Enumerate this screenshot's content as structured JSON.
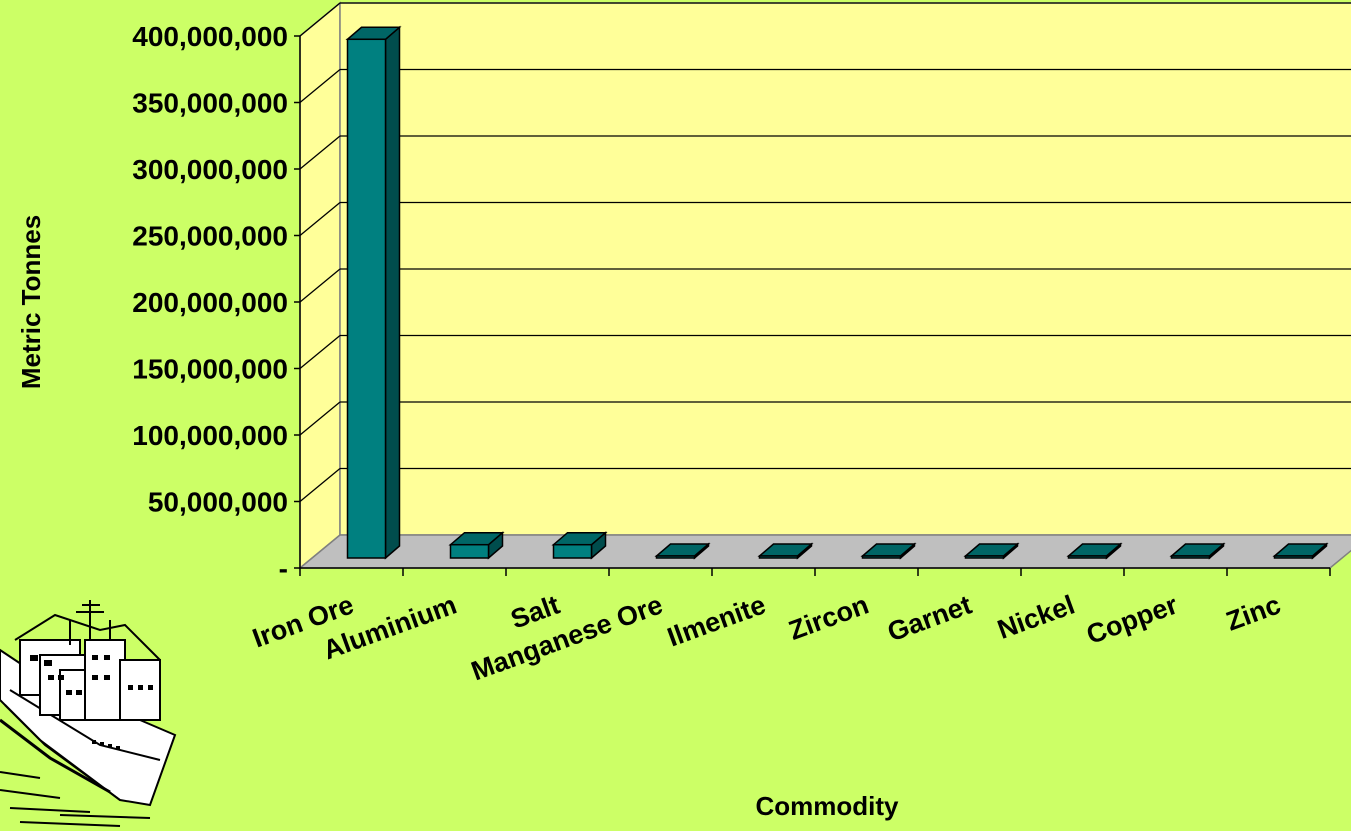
{
  "chart_data": {
    "type": "bar",
    "title": "",
    "xlabel": "Commodity",
    "ylabel": "Metric Tonnes",
    "categories": [
      "Iron Ore",
      "Aluminium",
      "Salt",
      "Manganese Ore",
      "Ilmenite",
      "Zircon",
      "Garnet",
      "Nickel",
      "Copper",
      "Zinc"
    ],
    "values": [
      390000000,
      10000000,
      10000000,
      0,
      0,
      0,
      0,
      0,
      0,
      0
    ],
    "ylim": [
      0,
      400000000
    ],
    "yticks": [
      0,
      50000000,
      100000000,
      150000000,
      200000000,
      250000000,
      300000000,
      350000000,
      400000000
    ],
    "ytick_labels": [
      "-",
      "50,000,000",
      "100,000,000",
      "150,000,000",
      "200,000,000",
      "250,000,000",
      "300,000,000",
      "350,000,000",
      "400,000,000"
    ],
    "grid": true,
    "style": "3d-column",
    "colors": {
      "background": "#ccff66",
      "plot_wall": "#ffff99",
      "floor": "#bfbfbf",
      "bar_front": "#008080",
      "bar_top": "#006666",
      "bar_side": "#004d4d",
      "grid": "#000000"
    }
  },
  "decoration": {
    "clipart": "cargo-ship-illustration"
  }
}
